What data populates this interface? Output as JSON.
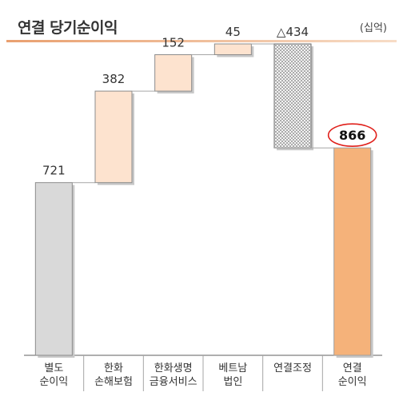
{
  "header": {
    "title": "연결 당기순이익",
    "unit": "(십억)"
  },
  "colors": {
    "total_bar": "#d9d9d9",
    "increase_bar": "#fde3cf",
    "adjustment_bar": "#e8e8e8",
    "final_bar": "#f5b27a",
    "highlight_ring": "#e0201b",
    "title_rule": "#e9a070"
  },
  "chart_data": {
    "type": "bar",
    "subtype": "waterfall",
    "categories": [
      [
        "별도",
        "순이익"
      ],
      [
        "한화",
        "손해보험"
      ],
      [
        "한화생명",
        "금융서비스"
      ],
      [
        "베트남",
        "법인"
      ],
      [
        "연결조정"
      ],
      [
        "연결",
        "순이익"
      ]
    ],
    "values": [
      721,
      382,
      152,
      45,
      -434,
      866
    ],
    "value_labels": [
      "721",
      "382",
      "152",
      "45",
      "△434",
      "866"
    ],
    "kinds": [
      "total",
      "increase",
      "increase",
      "increase",
      "decrease",
      "total"
    ],
    "highlighted_index": 5,
    "ylim": [
      0,
      1300
    ],
    "grid": false,
    "legend": "none",
    "xlabel": "",
    "ylabel": ""
  }
}
